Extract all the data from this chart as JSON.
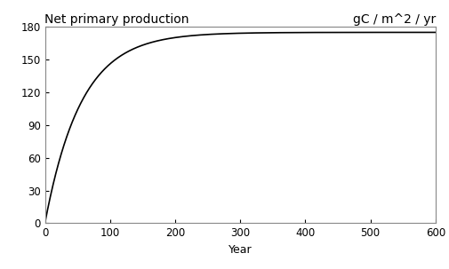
{
  "title_left": "Net primary production",
  "title_right": "gC / m^2 / yr",
  "xlabel": "Year",
  "xlim": [
    0,
    600
  ],
  "ylim": [
    0,
    180
  ],
  "yticks": [
    0,
    30,
    60,
    90,
    120,
    150,
    180
  ],
  "xticks": [
    0,
    100,
    200,
    300,
    400,
    500,
    600
  ],
  "asymptote": 175,
  "rate": 0.018,
  "line_color": "#000000",
  "line_width": 1.2,
  "spine_color": "#888888",
  "bg_color": "#ffffff",
  "title_fontsize": 10,
  "axis_label_fontsize": 9,
  "tick_fontsize": 8.5
}
